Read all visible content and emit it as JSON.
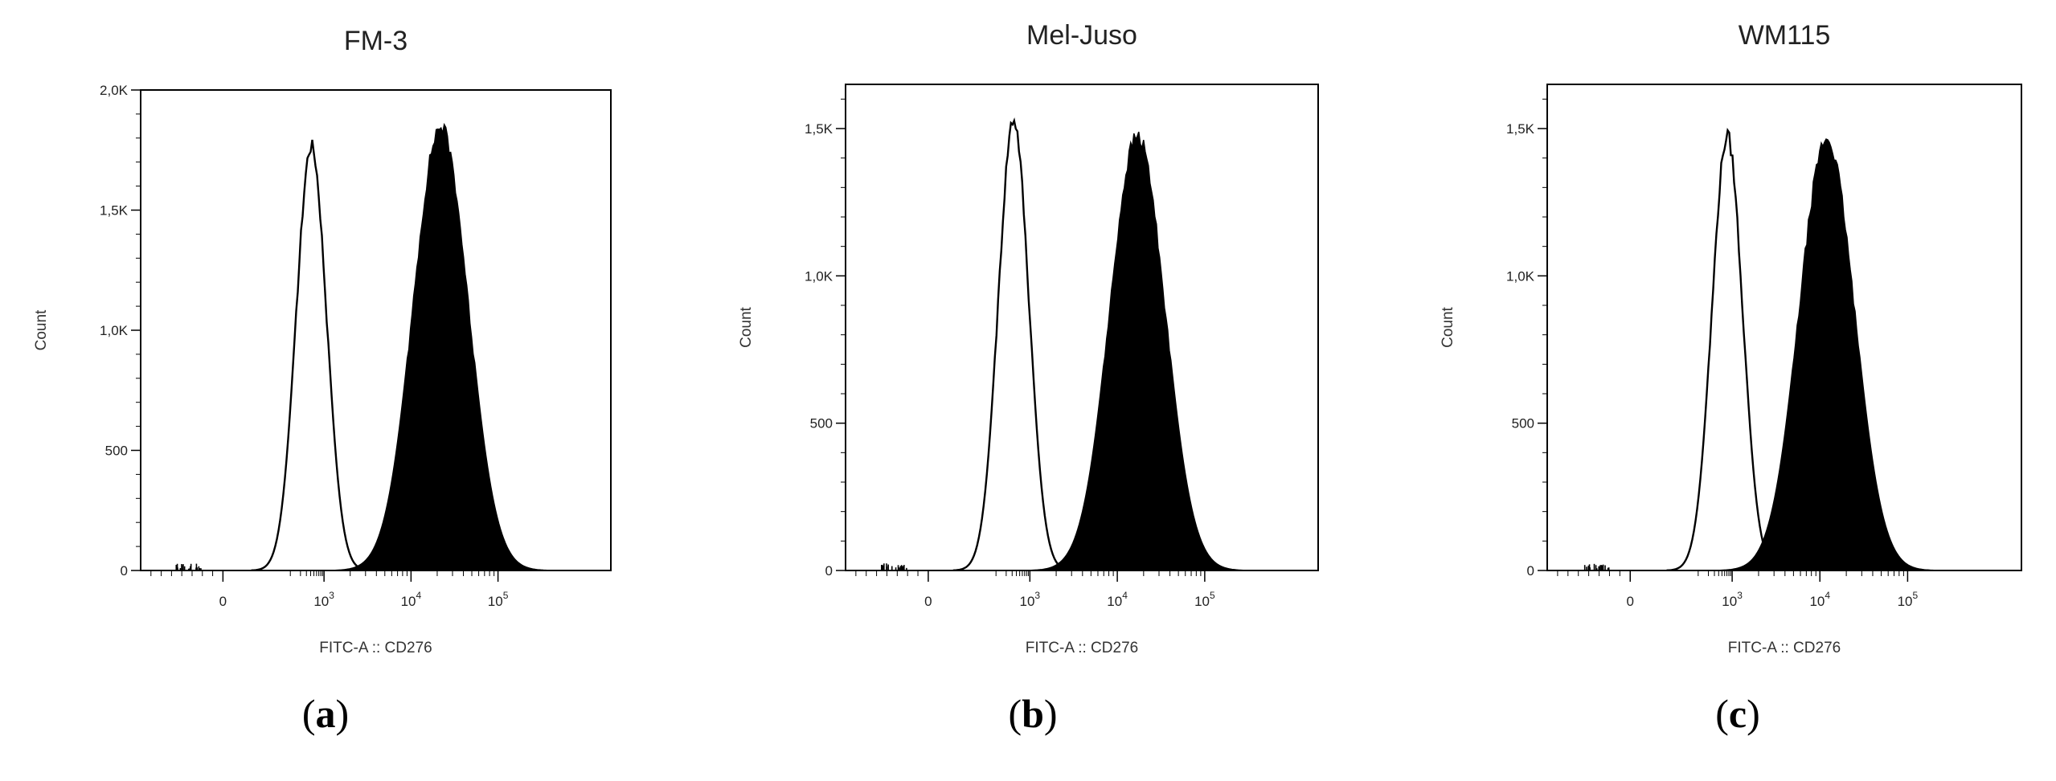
{
  "chart_data": [
    {
      "type": "histogram",
      "panel_label": "a",
      "title": "FM-3",
      "xlabel": "FITC-A :: CD276",
      "ylabel": "Count",
      "x_scale": "biexponential",
      "x_ticks": [
        {
          "base": "0",
          "exp": ""
        },
        {
          "base": "10",
          "exp": "3"
        },
        {
          "base": "10",
          "exp": "4"
        },
        {
          "base": "10",
          "exp": "5"
        }
      ],
      "y_ticks": [
        "0",
        "500",
        "1,0K",
        "1,5K",
        "2,0K"
      ],
      "ylim": [
        0,
        2000
      ],
      "series": [
        {
          "role": "control (open)",
          "color": "#000000",
          "filled": false,
          "peak_x": 420,
          "peak_count": 1800
        },
        {
          "role": "CD276 (filled)",
          "color": "#000000",
          "filled": true,
          "peak_x": 22000,
          "peak_count": 1880
        }
      ]
    },
    {
      "type": "histogram",
      "panel_label": "b",
      "title": "Mel-Juso",
      "xlabel": "FITC-A :: CD276",
      "ylabel": "Count",
      "x_scale": "biexponential",
      "x_ticks": [
        {
          "base": "0",
          "exp": ""
        },
        {
          "base": "10",
          "exp": "3"
        },
        {
          "base": "10",
          "exp": "4"
        },
        {
          "base": "10",
          "exp": "5"
        }
      ],
      "y_ticks": [
        "0",
        "500",
        "1,0K",
        "1,5K"
      ],
      "ylim": [
        0,
        1650
      ],
      "series": [
        {
          "role": "control (open)",
          "color": "#000000",
          "filled": false,
          "peak_x": 330,
          "peak_count": 1560
        },
        {
          "role": "CD276 (filled)",
          "color": "#000000",
          "filled": true,
          "peak_x": 17000,
          "peak_count": 1500
        }
      ]
    },
    {
      "type": "histogram",
      "panel_label": "c",
      "title": "WM115",
      "xlabel": "FITC-A :: CD276",
      "ylabel": "Count",
      "x_scale": "biexponential",
      "x_ticks": [
        {
          "base": "0",
          "exp": ""
        },
        {
          "base": "10",
          "exp": "3"
        },
        {
          "base": "10",
          "exp": "4"
        },
        {
          "base": "10",
          "exp": "5"
        }
      ],
      "y_ticks": [
        "0",
        "500",
        "1,0K",
        "1,5K"
      ],
      "ylim": [
        0,
        1650
      ],
      "series": [
        {
          "role": "control (open)",
          "color": "#000000",
          "filled": false,
          "peak_x": 720,
          "peak_count": 1500
        },
        {
          "role": "CD276 (filled)",
          "color": "#000000",
          "filled": true,
          "peak_x": 12000,
          "peak_count": 1490
        }
      ]
    }
  ]
}
